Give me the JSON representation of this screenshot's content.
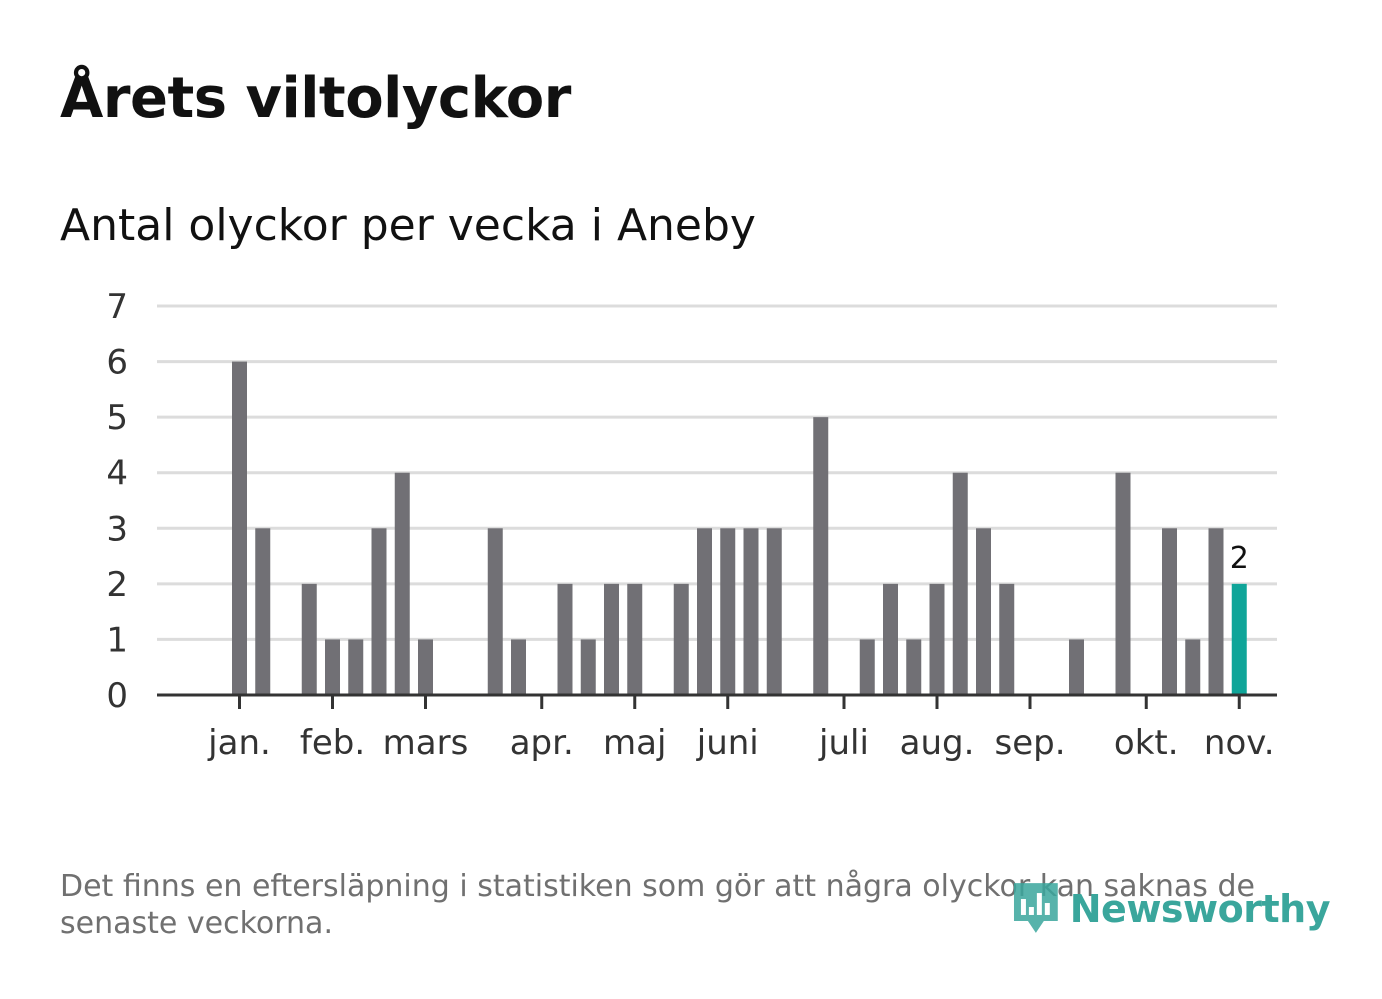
{
  "title": "Årets viltolyckor",
  "subtitle": "Antal olyckor per vecka i Aneby",
  "footnote": "Det finns en eftersläpning i statistiken som gör att några olyckor kan saknas de senaste veckorna.",
  "brand": {
    "name": "Newsworthy",
    "color": "#3aa69c"
  },
  "colors": {
    "bar": "#717075",
    "highlight": "#0fa599"
  },
  "chart_data": {
    "type": "bar",
    "title": "Antal olyckor per vecka i Aneby",
    "xlabel": "",
    "ylabel": "",
    "ylim": [
      0,
      7
    ],
    "yticks": [
      0,
      1,
      2,
      3,
      4,
      5,
      6,
      7
    ],
    "grid": true,
    "weeks": [
      1,
      2,
      3,
      4,
      5,
      6,
      7,
      8,
      9,
      10,
      11,
      12,
      13,
      14,
      15,
      16,
      17,
      18,
      19,
      20,
      21,
      22,
      23,
      24,
      25,
      26,
      27,
      28,
      29,
      30,
      31,
      32,
      33,
      34,
      35,
      36,
      37,
      38,
      39,
      40,
      41,
      42,
      43,
      44,
      45,
      46
    ],
    "values": [
      0,
      0,
      6,
      3,
      0,
      2,
      1,
      1,
      3,
      4,
      1,
      0,
      0,
      3,
      1,
      0,
      2,
      1,
      2,
      2,
      0,
      2,
      3,
      3,
      3,
      3,
      0,
      5,
      0,
      1,
      2,
      1,
      2,
      4,
      3,
      2,
      0,
      0,
      1,
      0,
      4,
      0,
      3,
      1,
      3,
      2
    ],
    "highlight_index": 45,
    "highlight_label": "2",
    "month_ticks": [
      {
        "label": "jan.",
        "week": 3
      },
      {
        "label": "feb.",
        "week": 7
      },
      {
        "label": "mars",
        "week": 11
      },
      {
        "label": "apr.",
        "week": 16
      },
      {
        "label": "maj",
        "week": 20
      },
      {
        "label": "juni",
        "week": 24
      },
      {
        "label": "juli",
        "week": 29
      },
      {
        "label": "aug.",
        "week": 33
      },
      {
        "label": "sep.",
        "week": 37
      },
      {
        "label": "okt.",
        "week": 42
      },
      {
        "label": "nov.",
        "week": 46
      }
    ]
  }
}
